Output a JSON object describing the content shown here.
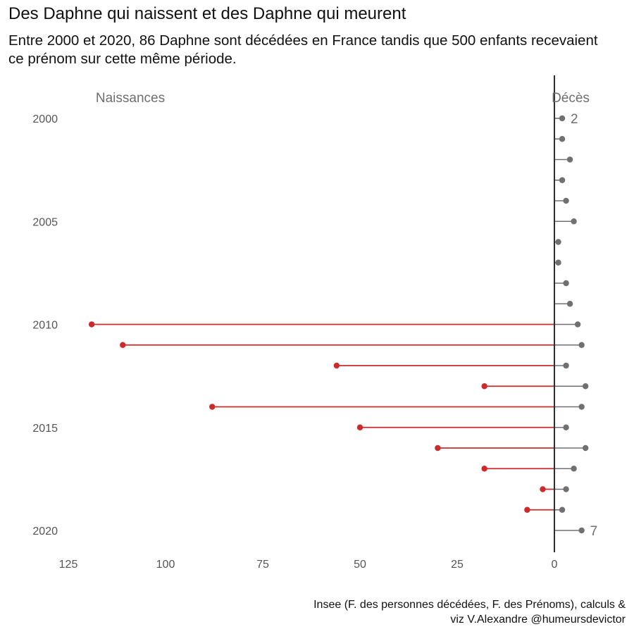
{
  "title": "Des Daphne qui naissent et des Daphne qui meurent",
  "subtitle": "Entre 2000 et 2020, 86 Daphne sont décédées en France tandis que 500 enfants recevaient ce prénom sur cette même période.",
  "caption_line1": "Insee (F. des personnes décédées, F. des Prénoms), calculs &",
  "caption_line2": "viz V.Alexandre @humeursdevictor",
  "colors": {
    "births": "#cc2b2b",
    "deaths": "#707070",
    "axis": "#2b2f33",
    "text": "#111111",
    "tick": "#555555"
  },
  "chart_data": {
    "type": "lollipop",
    "label_left": "Naissances",
    "label_right": "Décès",
    "xlim": [
      125,
      -15
    ],
    "ylim": [
      2000,
      2020
    ],
    "x_ticks": [
      125,
      100,
      75,
      50,
      25,
      0
    ],
    "y_ticks": [
      2000,
      2005,
      2010,
      2015,
      2020
    ],
    "annotations": [
      {
        "year": 2000,
        "text": "2"
      },
      {
        "year": 2020,
        "text": "7"
      }
    ],
    "series": [
      {
        "name": "Naissances",
        "data": [
          {
            "year": 2010,
            "value": 119
          },
          {
            "year": 2011,
            "value": 111
          },
          {
            "year": 2012,
            "value": 56
          },
          {
            "year": 2013,
            "value": 18
          },
          {
            "year": 2014,
            "value": 88
          },
          {
            "year": 2015,
            "value": 50
          },
          {
            "year": 2016,
            "value": 30
          },
          {
            "year": 2017,
            "value": 18
          },
          {
            "year": 2018,
            "value": 3
          },
          {
            "year": 2019,
            "value": 7
          }
        ]
      },
      {
        "name": "Décès",
        "data": [
          {
            "year": 2000,
            "value": 2
          },
          {
            "year": 2001,
            "value": 2
          },
          {
            "year": 2002,
            "value": 4
          },
          {
            "year": 2003,
            "value": 2
          },
          {
            "year": 2004,
            "value": 3
          },
          {
            "year": 2005,
            "value": 5
          },
          {
            "year": 2006,
            "value": 1
          },
          {
            "year": 2007,
            "value": 1
          },
          {
            "year": 2008,
            "value": 3
          },
          {
            "year": 2009,
            "value": 4
          },
          {
            "year": 2010,
            "value": 6
          },
          {
            "year": 2011,
            "value": 7
          },
          {
            "year": 2012,
            "value": 3
          },
          {
            "year": 2013,
            "value": 8
          },
          {
            "year": 2014,
            "value": 7
          },
          {
            "year": 2015,
            "value": 3
          },
          {
            "year": 2016,
            "value": 8
          },
          {
            "year": 2017,
            "value": 5
          },
          {
            "year": 2018,
            "value": 3
          },
          {
            "year": 2019,
            "value": 2
          },
          {
            "year": 2020,
            "value": 7
          }
        ]
      }
    ]
  }
}
